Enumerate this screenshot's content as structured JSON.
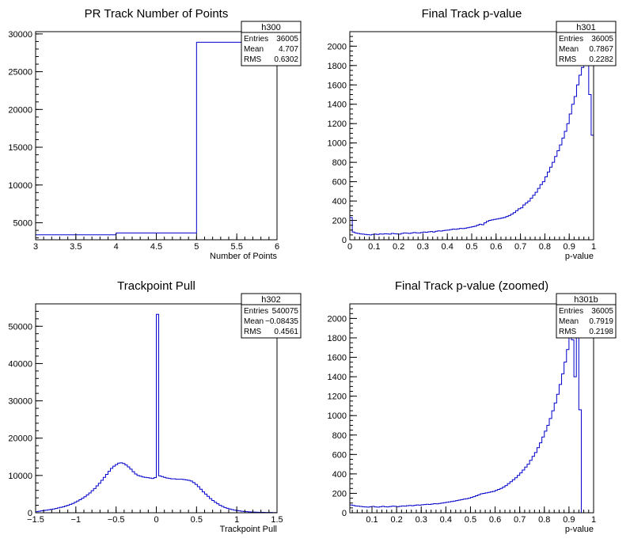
{
  "charts": [
    {
      "title": "PR Track Number of Points",
      "xlabel": "Number of Points",
      "stats": {
        "name": "h300",
        "rows": [
          [
            "Entries",
            "36005"
          ],
          [
            "Mean",
            "4.707"
          ],
          [
            "RMS",
            "0.6302"
          ]
        ]
      },
      "xticks": [
        "3",
        "3.5",
        "4",
        "4.5",
        "5",
        "5.5",
        "6"
      ],
      "yticks": [
        "5000",
        "10000",
        "15000",
        "20000",
        "25000",
        "30000"
      ]
    },
    {
      "title": "Final Track p-value",
      "xlabel": "p-value",
      "stats": {
        "name": "h301",
        "rows": [
          [
            "Entries",
            "36005"
          ],
          [
            "Mean",
            "0.7867"
          ],
          [
            "RMS",
            "0.2282"
          ]
        ]
      },
      "xticks": [
        "0",
        "0.1",
        "0.2",
        "0.3",
        "0.4",
        "0.5",
        "0.6",
        "0.7",
        "0.8",
        "0.9",
        "1"
      ],
      "yticks": [
        "0",
        "200",
        "400",
        "600",
        "800",
        "1000",
        "1200",
        "1400",
        "1600",
        "1800",
        "2000"
      ]
    },
    {
      "title": "Trackpoint Pull",
      "xlabel": "Trackpoint Pull",
      "stats": {
        "name": "h302",
        "rows": [
          [
            "Entries",
            "540075"
          ],
          [
            "Mean",
            "−0.08435"
          ],
          [
            "RMS",
            "0.4561"
          ]
        ]
      },
      "xticks": [
        "−1.5",
        "−1",
        "−0.5",
        "0",
        "0.5",
        "1",
        "1.5"
      ],
      "yticks": [
        "0",
        "10000",
        "20000",
        "30000",
        "40000",
        "50000"
      ]
    },
    {
      "title": "Final Track p-value (zoomed)",
      "xlabel": "p-value",
      "stats": {
        "name": "h301b",
        "rows": [
          [
            "Entries",
            "36005"
          ],
          [
            "Mean",
            "0.7919"
          ],
          [
            "RMS",
            "0.2198"
          ]
        ]
      },
      "xticks": [
        "0.1",
        "0.2",
        "0.3",
        "0.4",
        "0.5",
        "0.6",
        "0.7",
        "0.8",
        "0.9",
        "1"
      ],
      "yticks": [
        "0",
        "200",
        "400",
        "600",
        "800",
        "1000",
        "1200",
        "1400",
        "1600",
        "1800",
        "2000"
      ]
    }
  ],
  "chart_data": [
    {
      "type": "histogram",
      "title": "PR Track Number of Points",
      "xlabel": "Number of Points",
      "ylabel": "",
      "xlim": [
        3,
        6
      ],
      "ylim": [
        2750,
        30300
      ],
      "bin_edges": [
        3,
        4,
        5,
        6
      ],
      "counts": [
        3400,
        3650,
        28900
      ],
      "color": "#0000cc",
      "legend_position": "top-right"
    },
    {
      "type": "histogram",
      "title": "Final Track p-value",
      "xlabel": "p-value",
      "ylabel": "",
      "xlim": [
        0,
        1
      ],
      "ylim": [
        0,
        2150
      ],
      "bin_width": 0.01,
      "counts": [
        230,
        80,
        70,
        65,
        60,
        58,
        55,
        52,
        50,
        55,
        58,
        55,
        60,
        58,
        62,
        60,
        58,
        65,
        62,
        60,
        58,
        65,
        70,
        68,
        65,
        70,
        75,
        72,
        70,
        75,
        80,
        78,
        82,
        85,
        80,
        88,
        92,
        90,
        95,
        98,
        100,
        105,
        110,
        108,
        112,
        118,
        115,
        120,
        125,
        130,
        135,
        140,
        150,
        160,
        155,
        175,
        190,
        200,
        205,
        210,
        215,
        220,
        225,
        230,
        240,
        250,
        265,
        280,
        300,
        320,
        330,
        360,
        380,
        400,
        430,
        460,
        490,
        530,
        570,
        600,
        650,
        700,
        750,
        800,
        860,
        920,
        980,
        1050,
        1120,
        1200,
        1300,
        1400,
        1480,
        1600,
        1700,
        1780,
        1800,
        1850,
        1500,
        1080
      ],
      "color": "#0000cc",
      "legend_position": "top-right"
    },
    {
      "type": "histogram",
      "title": "Trackpoint Pull",
      "xlabel": "Trackpoint Pull",
      "ylabel": "",
      "xlim": [
        -1.5,
        1.5
      ],
      "ylim": [
        0,
        56000
      ],
      "bin_width": 0.03,
      "counts": [
        300,
        400,
        500,
        600,
        700,
        800,
        900,
        1000,
        1150,
        1300,
        1450,
        1600,
        1800,
        2000,
        2250,
        2500,
        2800,
        3150,
        3500,
        3900,
        4300,
        4800,
        5300,
        5900,
        6500,
        7200,
        7900,
        8700,
        9500,
        10300,
        11100,
        11900,
        12500,
        12900,
        13300,
        13400,
        13200,
        12800,
        12300,
        11700,
        11000,
        10400,
        10000,
        9800,
        9600,
        9500,
        9400,
        9300,
        9200,
        9400,
        53200,
        9900,
        9700,
        9500,
        9300,
        9200,
        9100,
        9100,
        9000,
        9000,
        9000,
        8900,
        8800,
        8700,
        8500,
        8100,
        7600,
        7000,
        6300,
        5600,
        5000,
        4400,
        3800,
        3300,
        2800,
        2400,
        2000,
        1700,
        1400,
        1200,
        1000,
        850,
        700,
        600,
        500,
        400,
        350,
        300,
        250,
        200,
        180,
        160,
        140,
        120,
        100,
        90,
        80,
        70,
        60,
        50
      ],
      "color": "#0000cc",
      "legend_position": "top-right"
    },
    {
      "type": "histogram",
      "title": "Final Track p-value (zoomed)",
      "xlabel": "p-value",
      "ylabel": "",
      "xlim": [
        0.01,
        1
      ],
      "ylim": [
        0,
        2150
      ],
      "bin_width": 0.01,
      "counts": [
        80,
        75,
        70,
        68,
        65,
        62,
        60,
        58,
        62,
        65,
        60,
        58,
        62,
        66,
        62,
        60,
        64,
        68,
        66,
        62,
        66,
        70,
        68,
        72,
        75,
        72,
        76,
        80,
        78,
        82,
        85,
        88,
        86,
        90,
        94,
        92,
        96,
        100,
        104,
        108,
        112,
        116,
        120,
        125,
        130,
        135,
        140,
        145,
        150,
        158,
        166,
        175,
        185,
        195,
        200,
        205,
        210,
        215,
        220,
        230,
        240,
        250,
        265,
        280,
        300,
        320,
        340,
        360,
        385,
        410,
        440,
        470,
        500,
        540,
        580,
        620,
        670,
        720,
        780,
        840,
        900,
        970,
        1050,
        1130,
        1220,
        1320,
        1430,
        1550,
        1680,
        1800,
        1780,
        1400,
        1800,
        1060
      ],
      "color": "#0000cc",
      "legend_position": "top-right"
    }
  ]
}
